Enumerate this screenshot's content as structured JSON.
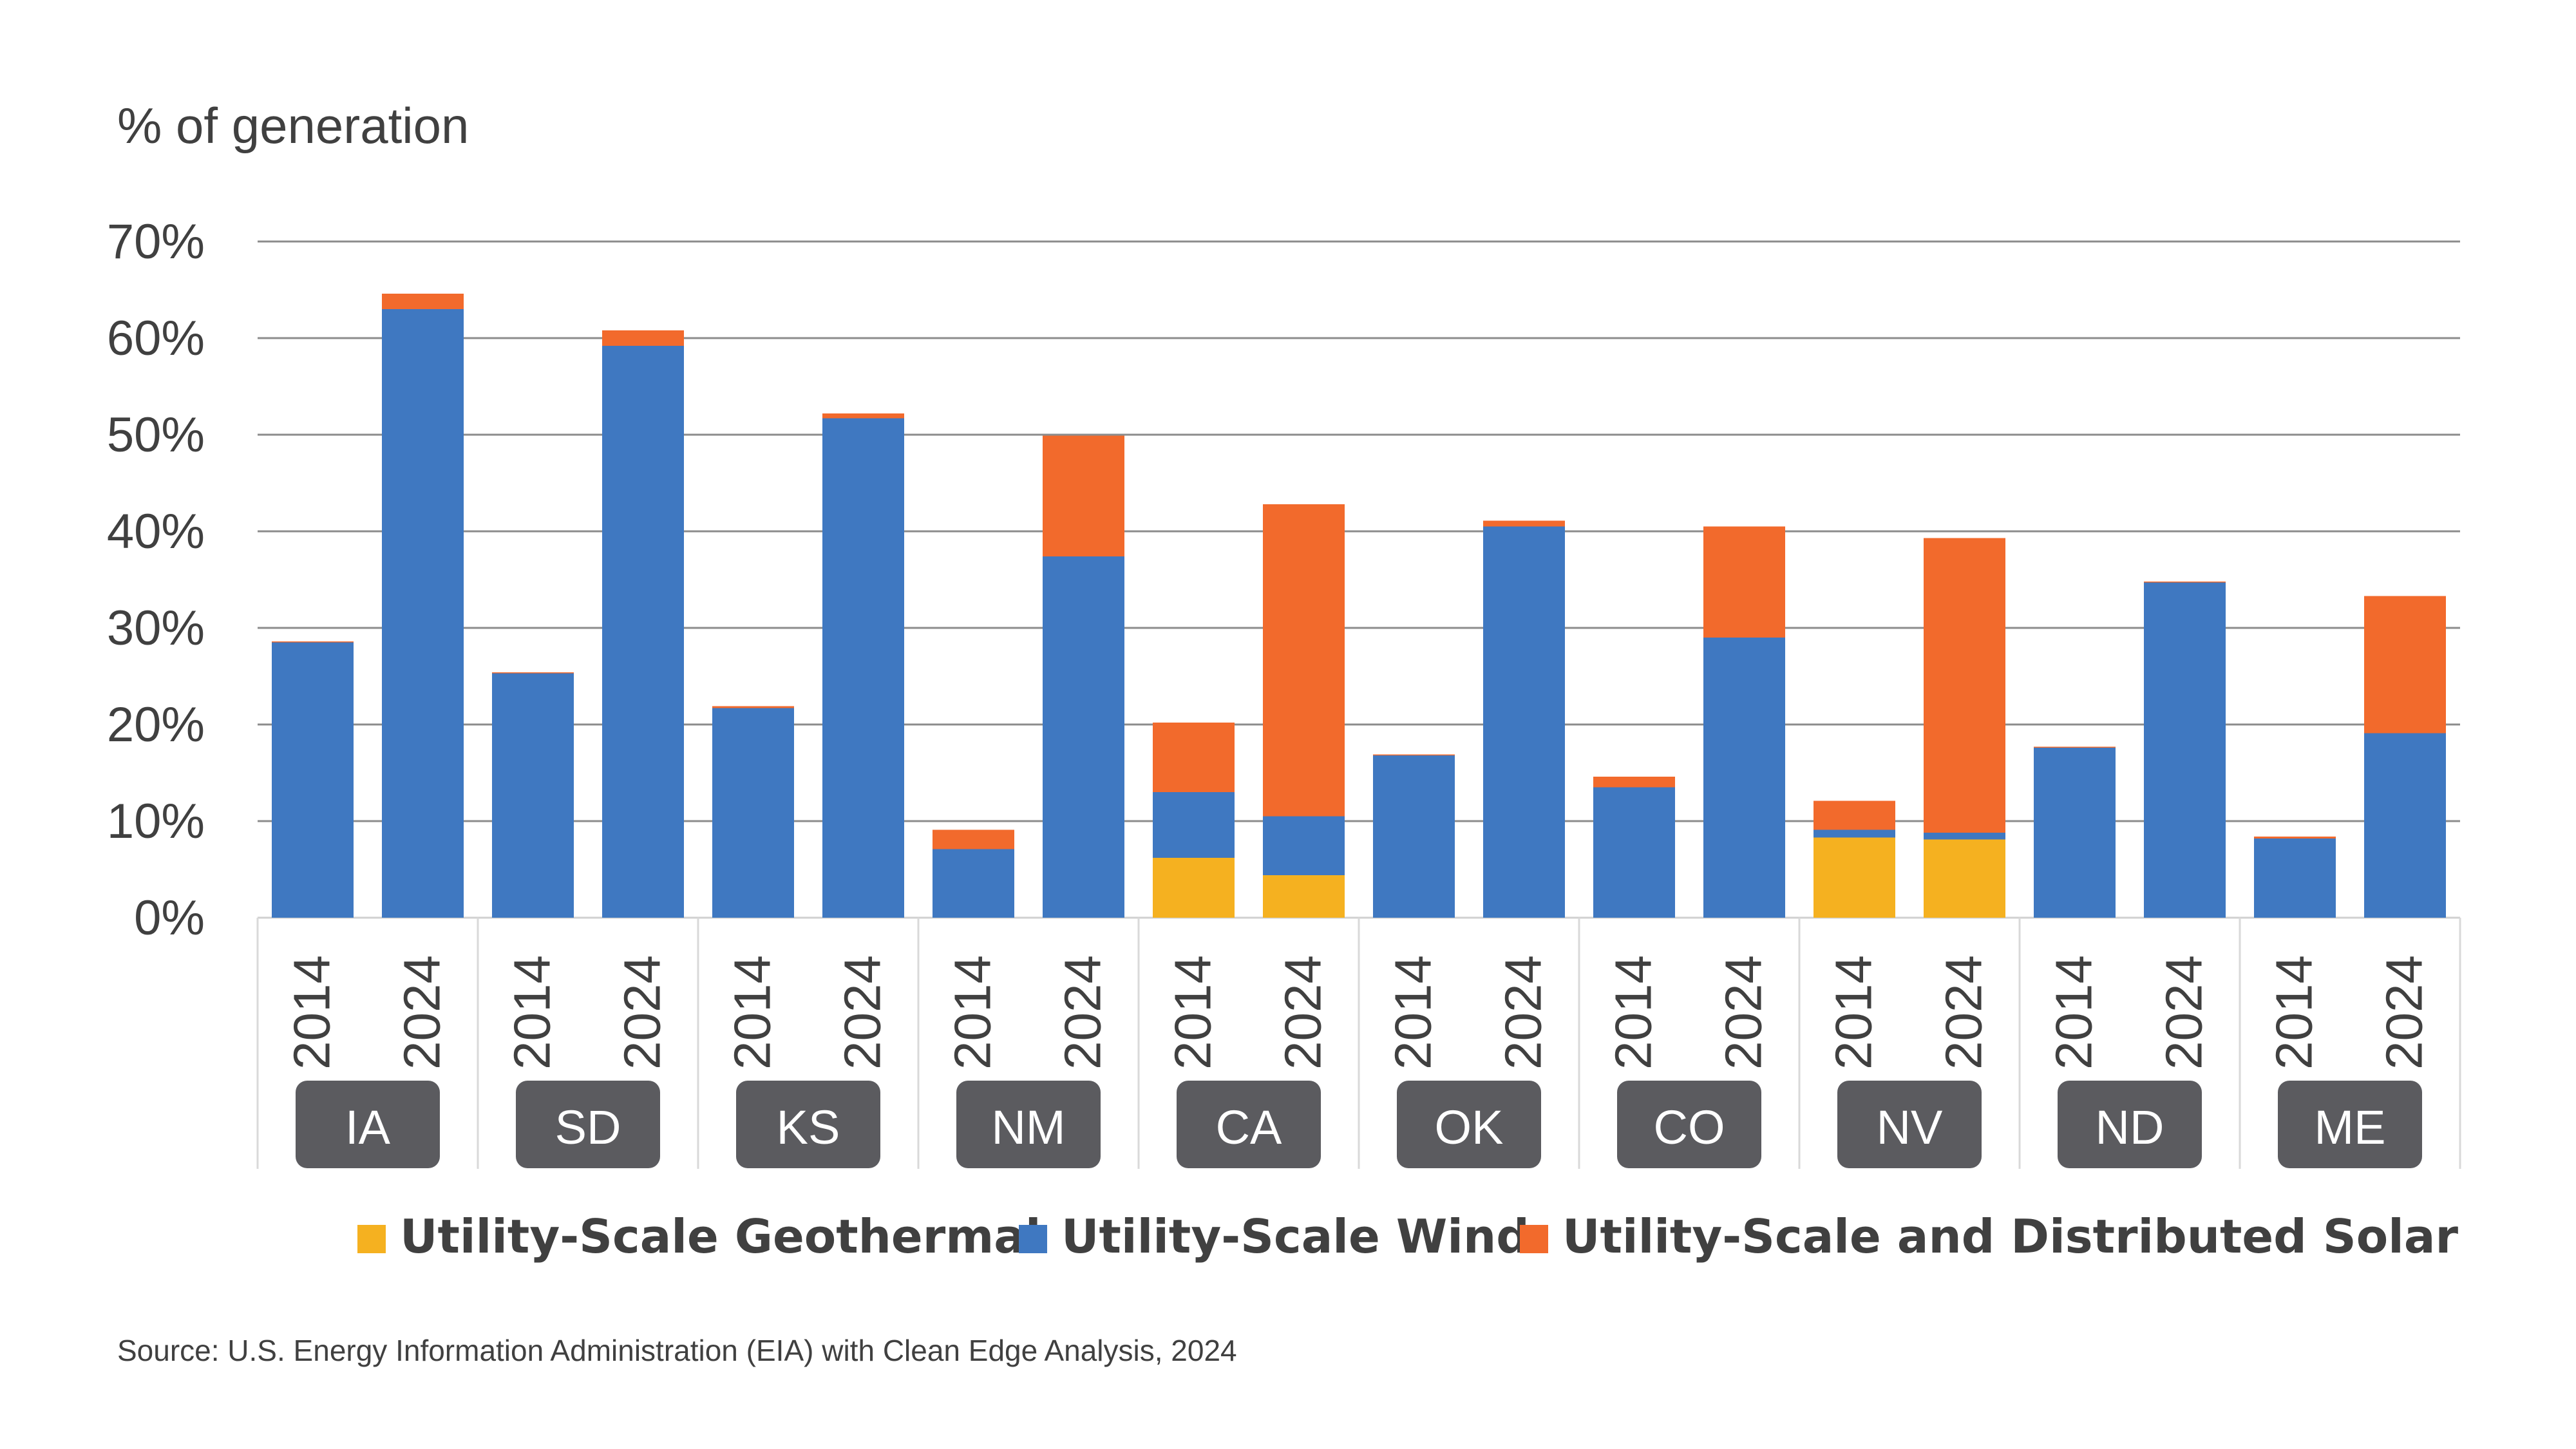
{
  "chart_data": {
    "type": "bar",
    "stacked": true,
    "ylabel": "% of generation",
    "ylim": [
      0,
      70
    ],
    "yticks": [
      "0%",
      "10%",
      "20%",
      "30%",
      "40%",
      "50%",
      "60%",
      "70%"
    ],
    "grid": true,
    "legend_position": "bottom",
    "groups": [
      "IA",
      "SD",
      "KS",
      "NM",
      "CA",
      "OK",
      "CO",
      "NV",
      "ND",
      "ME"
    ],
    "years": [
      "2014",
      "2024"
    ],
    "series": [
      {
        "name": "Utility-Scale Geothermal",
        "color": "#F5B120",
        "values": [
          0,
          0,
          0,
          0,
          0,
          0,
          0,
          0,
          6.2,
          4.4,
          0,
          0,
          0,
          0,
          8.3,
          8.1,
          0,
          0,
          0,
          0
        ]
      },
      {
        "name": "Utility-Scale Wind",
        "color": "#3F78C1",
        "values": [
          28.5,
          63.0,
          25.3,
          59.2,
          21.7,
          51.7,
          7.1,
          37.4,
          6.8,
          6.1,
          16.8,
          40.5,
          13.5,
          29.0,
          0.8,
          0.7,
          17.6,
          34.7,
          8.2,
          19.1
        ]
      },
      {
        "name": "Utility-Scale and Distributed Solar",
        "color": "#F26A2C",
        "values": [
          0.1,
          1.6,
          0.1,
          1.6,
          0.2,
          0.5,
          2.0,
          12.5,
          7.2,
          32.3,
          0.1,
          0.6,
          1.1,
          11.5,
          3.0,
          30.5,
          0.1,
          0.1,
          0.2,
          14.2
        ]
      }
    ]
  },
  "source": "Source: U.S. Energy Information Administration (EIA) with Clean Edge Analysis, 2024"
}
